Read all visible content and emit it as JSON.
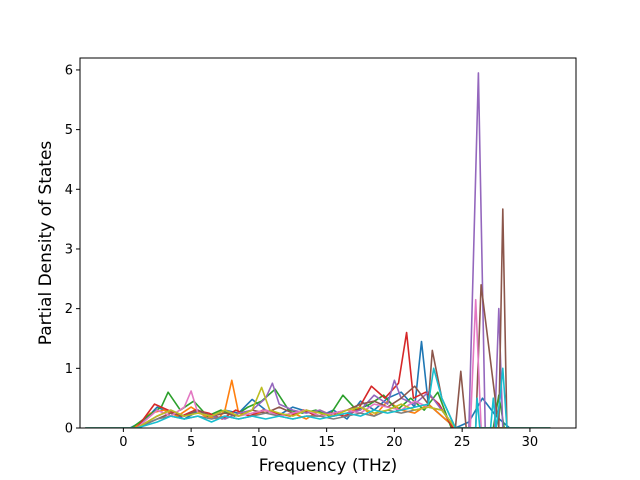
{
  "chart_data": {
    "type": "line",
    "title": "",
    "xlabel": "Frequency (THz)",
    "ylabel": "Partial Density of States",
    "xlim": [
      -3.2,
      33.4
    ],
    "ylim": [
      0,
      6.2
    ],
    "x_ticks": [
      0,
      5,
      10,
      15,
      20,
      25,
      30
    ],
    "y_ticks": [
      0,
      1,
      2,
      3,
      4,
      5,
      6
    ],
    "grid": false,
    "legend": "none",
    "colors": [
      "#1f77b4",
      "#ff7f0e",
      "#2ca02c",
      "#d62728",
      "#9467bd",
      "#8c564b",
      "#e377c2",
      "#7f7f7f",
      "#bcbd22",
      "#17becf"
    ],
    "series": [
      {
        "x": [
          -2.8,
          0.5,
          1.5,
          2.5,
          3.5,
          4.5,
          5.5,
          6.5,
          7.5,
          8.5,
          9.5,
          10.5,
          11.5,
          12.5,
          13.5,
          14.5,
          15.5,
          16.5,
          17.5,
          18.5,
          19.5,
          20.5,
          21.5,
          22.0,
          22.5,
          23.5,
          24.5,
          25.5,
          26.5,
          27.5,
          28.5,
          31.5
        ],
        "y": [
          0,
          0,
          0.12,
          0.35,
          0.25,
          0.15,
          0.28,
          0.2,
          0.3,
          0.25,
          0.48,
          0.3,
          0.22,
          0.35,
          0.28,
          0.2,
          0.3,
          0.15,
          0.45,
          0.3,
          0.5,
          0.6,
          0.35,
          1.45,
          0.4,
          0.2,
          0,
          0.1,
          0.5,
          0.2,
          0,
          0
        ]
      },
      {
        "x": [
          -2.8,
          0.8,
          2,
          3,
          4,
          5,
          6,
          7,
          7.5,
          8,
          8.5,
          9.5,
          10.5,
          11.5,
          12.5,
          13.5,
          14.5,
          15.5,
          16.5,
          17.5,
          18.5,
          19.5,
          20.5,
          21.5,
          22.5,
          23.5,
          24.5,
          31.5
        ],
        "y": [
          0,
          0,
          0.25,
          0.3,
          0.2,
          0.35,
          0.2,
          0.15,
          0.3,
          0.8,
          0.25,
          0.2,
          0.3,
          0.2,
          0.25,
          0.15,
          0.3,
          0.2,
          0.25,
          0.35,
          0.2,
          0.45,
          0.3,
          0.25,
          0.4,
          0.2,
          0,
          0
        ]
      },
      {
        "x": [
          -2.8,
          0.6,
          1.8,
          2.8,
          3.3,
          4.2,
          5.2,
          6.2,
          7.2,
          8.2,
          9.2,
          10.2,
          11.2,
          12.2,
          13.2,
          14.2,
          15.2,
          16.2,
          17.2,
          18.2,
          19.2,
          20.2,
          21.2,
          22.2,
          23.2,
          24.2,
          27.3,
          27.7,
          28.1,
          31.5
        ],
        "y": [
          0,
          0,
          0.2,
          0.35,
          0.6,
          0.3,
          0.45,
          0.2,
          0.3,
          0.2,
          0.35,
          0.45,
          0.65,
          0.3,
          0.25,
          0.3,
          0.2,
          0.55,
          0.3,
          0.4,
          0.55,
          0.3,
          0.5,
          0.3,
          0.6,
          0,
          0,
          0.55,
          0,
          0
        ]
      },
      {
        "x": [
          -2.8,
          1,
          2.3,
          3.3,
          4.3,
          5.3,
          6.3,
          7.3,
          8.3,
          9.3,
          10.3,
          11.3,
          12.3,
          13.3,
          14.3,
          15.3,
          16.3,
          17.3,
          18.3,
          19.3,
          20.3,
          20.9,
          21.4,
          22.3,
          23.3,
          24.3,
          31.5
        ],
        "y": [
          0,
          0,
          0.4,
          0.3,
          0.2,
          0.3,
          0.25,
          0.15,
          0.3,
          0.2,
          0.3,
          0.25,
          0.2,
          0.3,
          0.2,
          0.25,
          0.2,
          0.3,
          0.7,
          0.5,
          0.75,
          1.6,
          0.5,
          0.6,
          0.4,
          0,
          0
        ]
      },
      {
        "x": [
          -2.8,
          1,
          2.5,
          3.5,
          4.5,
          5.5,
          6.5,
          7.5,
          8.5,
          9.5,
          10.5,
          11.0,
          11.5,
          12.5,
          13.5,
          14.5,
          15.5,
          16.5,
          17.5,
          18.5,
          19.5,
          20.0,
          20.5,
          21.5,
          22.5,
          23.5,
          24.5,
          25.5,
          26.2,
          26.7,
          27.4,
          27.7,
          28.0,
          31.5
        ],
        "y": [
          0,
          0,
          0.2,
          0.3,
          0.2,
          0.3,
          0.2,
          0.15,
          0.25,
          0.3,
          0.5,
          0.75,
          0.4,
          0.3,
          0.25,
          0.3,
          0.2,
          0.25,
          0.3,
          0.55,
          0.4,
          0.8,
          0.5,
          0.4,
          0.6,
          0.3,
          0,
          0,
          5.95,
          0,
          0,
          2.0,
          0,
          0
        ]
      },
      {
        "x": [
          -2.8,
          1,
          2.5,
          3.5,
          4.5,
          5.5,
          6.5,
          7.5,
          8.5,
          9.5,
          10.5,
          11.5,
          12.5,
          13.5,
          14.5,
          15.5,
          16.5,
          17.5,
          18.5,
          19.5,
          20.5,
          21.5,
          22.5,
          22.8,
          23.5,
          24.5,
          24.9,
          25.3,
          26.0,
          26.4,
          27.7,
          28.0,
          28.3,
          31.5
        ],
        "y": [
          0,
          0,
          0.15,
          0.25,
          0.2,
          0.3,
          0.2,
          0.25,
          0.2,
          0.3,
          0.25,
          0.35,
          0.25,
          0.3,
          0.2,
          0.25,
          0.3,
          0.4,
          0.45,
          0.35,
          0.5,
          0.7,
          0.4,
          1.3,
          0.5,
          0,
          0.95,
          0,
          0,
          2.4,
          0,
          3.67,
          0,
          0
        ]
      },
      {
        "x": [
          -2.8,
          1,
          2.5,
          3.5,
          4.5,
          5.0,
          5.5,
          6.5,
          7.5,
          8.5,
          9.5,
          10.5,
          11.5,
          12.5,
          13.5,
          14.5,
          15.5,
          16.5,
          17.5,
          18.5,
          19.5,
          20.5,
          21.5,
          22.5,
          23.5,
          24.5,
          25.6,
          26.0,
          26.4,
          27.0,
          31.5
        ],
        "y": [
          0,
          0,
          0.3,
          0.2,
          0.35,
          0.62,
          0.25,
          0.2,
          0.3,
          0.2,
          0.25,
          0.3,
          0.2,
          0.25,
          0.3,
          0.2,
          0.25,
          0.3,
          0.25,
          0.4,
          0.35,
          0.3,
          0.45,
          0.35,
          0.3,
          0,
          0,
          2.15,
          0,
          0,
          0
        ]
      },
      {
        "x": [
          -2.8,
          1,
          2.5,
          3.5,
          4.5,
          5.5,
          6.5,
          7.5,
          8.5,
          9.5,
          10.5,
          11.5,
          12.5,
          13.5,
          14.5,
          15.5,
          16.5,
          17.5,
          18.5,
          19.5,
          20.5,
          21.5,
          22.5,
          23.5,
          24.5,
          31.5
        ],
        "y": [
          0,
          0,
          0.15,
          0.2,
          0.15,
          0.2,
          0.15,
          0.2,
          0.15,
          0.2,
          0.25,
          0.2,
          0.15,
          0.2,
          0.2,
          0.15,
          0.2,
          0.25,
          0.2,
          0.3,
          0.25,
          0.3,
          0.35,
          0.3,
          0,
          0
        ]
      },
      {
        "x": [
          -2.8,
          1,
          2.5,
          3.5,
          4.5,
          5.5,
          6.5,
          7.5,
          8.5,
          9.5,
          10.2,
          10.8,
          11.5,
          12.5,
          13.5,
          14.5,
          15.5,
          16.5,
          17.5,
          18.5,
          19.5,
          20.5,
          21.5,
          22.5,
          23.5,
          24.5,
          31.5
        ],
        "y": [
          0,
          0,
          0.2,
          0.3,
          0.2,
          0.25,
          0.2,
          0.3,
          0.2,
          0.3,
          0.68,
          0.3,
          0.25,
          0.2,
          0.3,
          0.25,
          0.2,
          0.3,
          0.35,
          0.25,
          0.3,
          0.4,
          0.3,
          0.35,
          0.3,
          0,
          0
        ]
      },
      {
        "x": [
          -2.8,
          1,
          2.5,
          3.5,
          4.5,
          5.5,
          6.5,
          7.5,
          8.5,
          9.5,
          10.5,
          11.5,
          12.5,
          13.5,
          14.5,
          15.5,
          16.5,
          17.5,
          18.5,
          19.5,
          20.5,
          21.5,
          22.5,
          22.9,
          23.5,
          24.5,
          26.0,
          26.1,
          26.3,
          27.1,
          27.3,
          27.5,
          27.8,
          28.0,
          28.3,
          31.5
        ],
        "y": [
          0,
          0,
          0.1,
          0.2,
          0.15,
          0.2,
          0.1,
          0.2,
          0.15,
          0.2,
          0.15,
          0.2,
          0.15,
          0.2,
          0.15,
          0.2,
          0.25,
          0.2,
          0.3,
          0.25,
          0.3,
          0.35,
          0.4,
          1.0,
          0.5,
          0,
          0,
          0.5,
          0,
          0,
          0.5,
          0,
          0.5,
          1.0,
          0,
          0
        ]
      }
    ]
  }
}
